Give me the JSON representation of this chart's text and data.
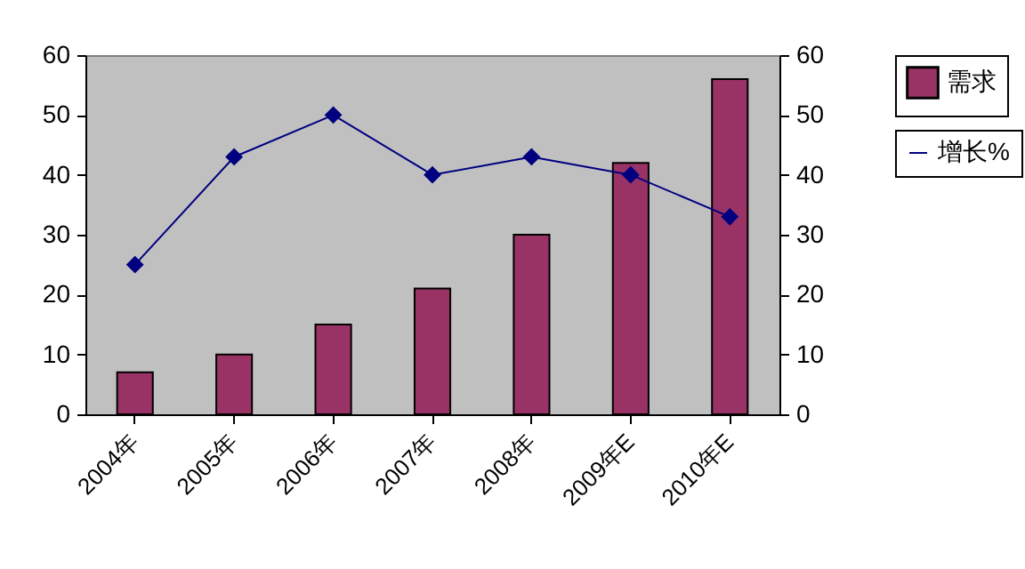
{
  "chart_data": {
    "type": "bar",
    "categories": [
      "2004年",
      "2005年",
      "2006年",
      "2007年",
      "2008年",
      "2009年E",
      "2010年E"
    ],
    "series": [
      {
        "name": "需求",
        "color": "#993366",
        "values": [
          7,
          10,
          15,
          21,
          30,
          42,
          56
        ]
      },
      {
        "name": "增长%",
        "type": "line",
        "axis": "y2",
        "color": "#000080",
        "values": [
          25,
          43,
          50,
          40,
          43,
          40,
          33
        ]
      }
    ],
    "ylim": [
      0,
      60
    ],
    "yticks": [
      0,
      10,
      20,
      30,
      40,
      50,
      60
    ],
    "y2lim": [
      0,
      60
    ],
    "y2ticks": [
      0,
      10,
      20,
      30,
      40,
      50,
      60
    ],
    "legend": "right",
    "marker": "diamond",
    "grid": false
  }
}
